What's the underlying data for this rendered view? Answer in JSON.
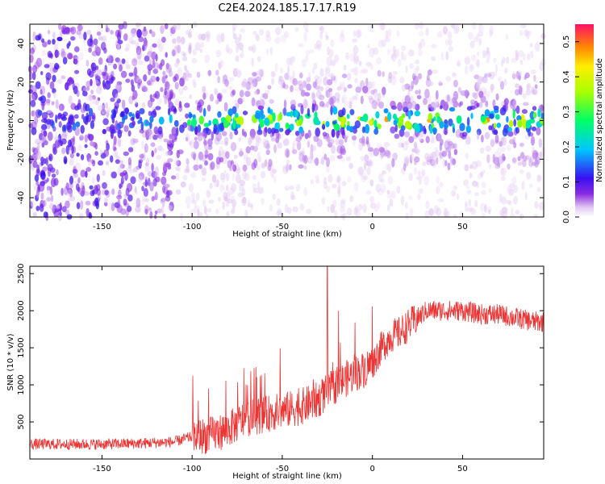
{
  "title": "C2E4.2024.185.17.17.R19",
  "chart_data": [
    {
      "type": "heatmap",
      "xlabel": "Height of straight line (km)",
      "ylabel": "Frequency (Hz)",
      "xlim": [
        -190,
        95
      ],
      "ylim": [
        -50,
        50
      ],
      "xticks": [
        -150,
        -100,
        -50,
        0,
        50
      ],
      "yticks": [
        -40,
        -20,
        0,
        20,
        40
      ],
      "colorbar": {
        "label": "Normalized spectral amplitude",
        "range": [
          0.0,
          0.55
        ],
        "ticks": [
          0.0,
          0.1,
          0.2,
          0.3,
          0.4,
          0.5
        ]
      },
      "description_points": {
        "x": [
          -190,
          -150,
          -120,
          -100,
          -50,
          0,
          25,
          50,
          95
        ],
        "peak_amplitude_near_0Hz": [
          0.05,
          0.08,
          0.12,
          0.25,
          0.35,
          0.4,
          0.42,
          0.4,
          0.38
        ],
        "background_amplitude": [
          0.08,
          0.08,
          0.06,
          0.05,
          0.04,
          0.04,
          0.04,
          0.04,
          0.04
        ]
      },
      "grid": false
    },
    {
      "type": "line",
      "xlabel": "Height of straight line (km)",
      "ylabel": "SNR (10 * v/v)",
      "xlim": [
        -190,
        95
      ],
      "ylim": [
        0,
        2600
      ],
      "xticks": [
        -150,
        -100,
        -50,
        0,
        50
      ],
      "yticks": [
        500,
        1000,
        1500,
        2000,
        2500
      ],
      "color": "#ee3333",
      "series": [
        {
          "x": [
            -190,
            -170,
            -150,
            -130,
            -110,
            -100,
            -90,
            -80,
            -70,
            -60,
            -50,
            -40,
            -30,
            -25,
            -20,
            -10,
            -5,
            0,
            5,
            10,
            15,
            20,
            25,
            30,
            40,
            50,
            60,
            70,
            80,
            90,
            95
          ],
          "values": [
            200,
            200,
            200,
            210,
            230,
            300,
            320,
            400,
            550,
            600,
            650,
            700,
            800,
            900,
            1000,
            1150,
            1200,
            1300,
            1500,
            1650,
            1700,
            1800,
            1900,
            2000,
            2000,
            2000,
            1950,
            1950,
            1900,
            1850,
            1850
          ]
        }
      ],
      "grid": false
    }
  ]
}
